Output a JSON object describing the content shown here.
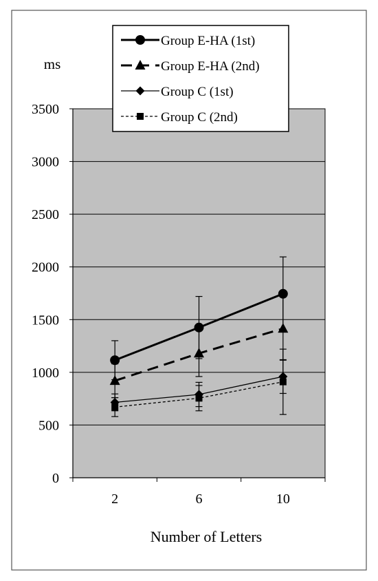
{
  "chart_data": {
    "type": "line",
    "title": "",
    "xlabel": "Number of Letters",
    "ylabel": "ms",
    "x": [
      "2",
      "6",
      "10"
    ],
    "ylim": [
      0,
      3500
    ],
    "yticks": [
      0,
      500,
      1000,
      1500,
      2000,
      2500,
      3000,
      3500
    ],
    "grid": "horizontal",
    "legend_position": "top-center",
    "plot_background": "#c0c0c0",
    "series": [
      {
        "name": "Group E-HA (1st)",
        "values": [
          1115,
          1425,
          1745
        ],
        "error": [
          185,
          295,
          350
        ],
        "marker": "circle",
        "line_style": "solid-thick",
        "color": "#000000"
      },
      {
        "name": "Group E-HA (2nd)",
        "values": [
          920,
          1180,
          1415
        ],
        "error": [
          160,
          220,
          300
        ],
        "marker": "triangle",
        "line_style": "dashed-thick",
        "color": "#000000"
      },
      {
        "name": "Group C (1st)",
        "values": [
          715,
          790,
          960
        ],
        "error": [
          80,
          115,
          160
        ],
        "marker": "diamond",
        "line_style": "solid-thin",
        "color": "#000000"
      },
      {
        "name": "Group C (2nd)",
        "values": [
          670,
          755,
          910
        ],
        "error": [
          90,
          120,
          310
        ],
        "marker": "square",
        "line_style": "dotted-thin",
        "color": "#000000"
      }
    ]
  }
}
